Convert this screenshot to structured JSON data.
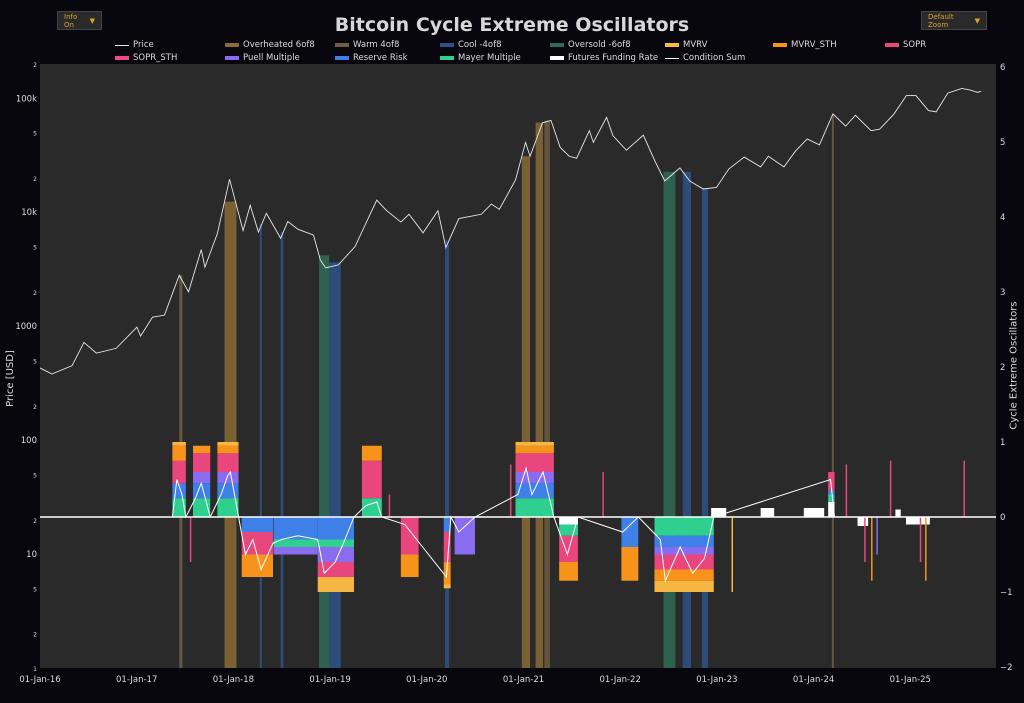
{
  "header": {
    "title": "Bitcoin Cycle Extreme Oscillators",
    "info_button": "Info On",
    "zoom_button": "Default Zoom",
    "dropdown_icon": "triangle-down-icon"
  },
  "colors": {
    "background": "#07070d",
    "plot_bg": "#2a2a2a",
    "price": "#e8e8e8",
    "overheated": "#8a6a36",
    "warm": "#6e5e42",
    "cool": "#2f5288",
    "oversold": "#2f6b55",
    "mvrv": "#f5b642",
    "mvrv_sth": "#f7931a",
    "sopr": "#e8467c",
    "sopr_sth": "#f04a86",
    "puell": "#8a6cf0",
    "reserve": "#3f80e8",
    "mayer": "#2fcf90",
    "futures": "#ffffff",
    "condition_sum": "#ffffff"
  },
  "legend": [
    {
      "key": "price",
      "label": "Price",
      "style": "line"
    },
    {
      "key": "overheated",
      "label": "Overheated 6of8",
      "style": "bar"
    },
    {
      "key": "warm",
      "label": "Warm 4of8",
      "style": "bar"
    },
    {
      "key": "cool",
      "label": "Cool -4of8",
      "style": "bar"
    },
    {
      "key": "oversold",
      "label": "Oversold -6of8",
      "style": "bar"
    },
    {
      "key": "mvrv",
      "label": "MVRV",
      "style": "bar"
    },
    {
      "key": "mvrv_sth",
      "label": "MVRV_STH",
      "style": "bar"
    },
    {
      "key": "sopr",
      "label": "SOPR",
      "style": "bar"
    },
    {
      "key": "sopr_sth",
      "label": "SOPR_STH",
      "style": "bar"
    },
    {
      "key": "puell",
      "label": "Puell Multiple",
      "style": "bar"
    },
    {
      "key": "reserve",
      "label": "Reserve Risk",
      "style": "bar"
    },
    {
      "key": "mayer",
      "label": "Mayer Multiple",
      "style": "bar"
    },
    {
      "key": "futures",
      "label": "Futures Funding Rate",
      "style": "bar"
    },
    {
      "key": "condition_sum",
      "label": "Condition Sum",
      "style": "line"
    }
  ],
  "chart_data": {
    "type": "line",
    "title": "Bitcoin Cycle Extreme Oscillators",
    "ylabel": "Price [USD]",
    "y2label": "Cycle Extreme Oscillators",
    "yscale": "log",
    "ylim": [
      1,
      200000
    ],
    "y2lim": [
      -2,
      6
    ],
    "xlim": [
      "2016-01-01",
      "2025-09-30"
    ],
    "grid": false,
    "legend_placement": "top",
    "x_ticks": [
      "01-Jan-16",
      "01-Jan-17",
      "01-Jan-18",
      "01-Jan-19",
      "01-Jan-20",
      "01-Jan-21",
      "01-Jan-22",
      "01-Jan-23",
      "01-Jan-24",
      "01-Jan-25"
    ],
    "y_ticks": [
      {
        "v": 1,
        "l": "1"
      },
      {
        "v": 2,
        "l": "2"
      },
      {
        "v": 5,
        "l": "5"
      },
      {
        "v": 10,
        "l": "10"
      },
      {
        "v": 20,
        "l": "2"
      },
      {
        "v": 50,
        "l": "5"
      },
      {
        "v": 100,
        "l": "100"
      },
      {
        "v": 200,
        "l": "2"
      },
      {
        "v": 500,
        "l": "5"
      },
      {
        "v": 1000,
        "l": "1000"
      },
      {
        "v": 2000,
        "l": "2"
      },
      {
        "v": 5000,
        "l": "5"
      },
      {
        "v": 10000,
        "l": "10k"
      },
      {
        "v": 20000,
        "l": "2"
      },
      {
        "v": 50000,
        "l": "5"
      },
      {
        "v": 100000,
        "l": "100k"
      },
      {
        "v": 200000,
        "l": "2"
      }
    ],
    "y2_ticks": [
      -2,
      -1,
      0,
      1,
      2,
      3,
      4,
      5,
      6
    ],
    "price": [
      [
        "2016-01-01",
        430
      ],
      [
        "2016-02-15",
        380
      ],
      [
        "2016-05-01",
        450
      ],
      [
        "2016-06-15",
        720
      ],
      [
        "2016-08-01",
        580
      ],
      [
        "2016-10-15",
        640
      ],
      [
        "2017-01-01",
        980
      ],
      [
        "2017-01-15",
        820
      ],
      [
        "2017-03-01",
        1200
      ],
      [
        "2017-04-15",
        1250
      ],
      [
        "2017-06-10",
        2800
      ],
      [
        "2017-07-15",
        2000
      ],
      [
        "2017-09-01",
        4700
      ],
      [
        "2017-09-15",
        3300
      ],
      [
        "2017-11-01",
        6500
      ],
      [
        "2017-12-17",
        19500
      ],
      [
        "2018-02-06",
        6900
      ],
      [
        "2018-03-05",
        11500
      ],
      [
        "2018-04-05",
        6700
      ],
      [
        "2018-05-05",
        9800
      ],
      [
        "2018-06-28",
        5900
      ],
      [
        "2018-07-25",
        8300
      ],
      [
        "2018-09-01",
        7100
      ],
      [
        "2018-10-30",
        6300
      ],
      [
        "2018-11-25",
        3800
      ],
      [
        "2018-12-15",
        3250
      ],
      [
        "2019-02-01",
        3450
      ],
      [
        "2019-04-05",
        5000
      ],
      [
        "2019-06-26",
        12800
      ],
      [
        "2019-08-01",
        10400
      ],
      [
        "2019-09-25",
        8200
      ],
      [
        "2019-10-26",
        9600
      ],
      [
        "2019-12-18",
        6600
      ],
      [
        "2020-02-12",
        10300
      ],
      [
        "2020-03-13",
        4900
      ],
      [
        "2020-05-01",
        8800
      ],
      [
        "2020-07-25",
        9600
      ],
      [
        "2020-09-01",
        11800
      ],
      [
        "2020-10-01",
        10600
      ],
      [
        "2020-12-01",
        19200
      ],
      [
        "2021-01-08",
        41000
      ],
      [
        "2021-01-25",
        31000
      ],
      [
        "2021-03-13",
        61000
      ],
      [
        "2021-04-14",
        64000
      ],
      [
        "2021-05-19",
        37000
      ],
      [
        "2021-06-22",
        31000
      ],
      [
        "2021-07-20",
        29800
      ],
      [
        "2021-09-06",
        52000
      ],
      [
        "2021-09-21",
        41000
      ],
      [
        "2021-11-10",
        68000
      ],
      [
        "2021-12-04",
        47000
      ],
      [
        "2022-01-24",
        35000
      ],
      [
        "2022-03-29",
        47500
      ],
      [
        "2022-05-12",
        28000
      ],
      [
        "2022-06-18",
        18800
      ],
      [
        "2022-08-14",
        24500
      ],
      [
        "2022-09-20",
        18800
      ],
      [
        "2022-11-10",
        16000
      ],
      [
        "2022-12-30",
        16500
      ],
      [
        "2023-02-15",
        24000
      ],
      [
        "2023-04-14",
        30500
      ],
      [
        "2023-06-15",
        25000
      ],
      [
        "2023-07-14",
        31000
      ],
      [
        "2023-09-11",
        25000
      ],
      [
        "2023-10-25",
        34500
      ],
      [
        "2023-12-08",
        44000
      ],
      [
        "2024-01-23",
        39000
      ],
      [
        "2024-03-14",
        73000
      ],
      [
        "2024-05-01",
        57000
      ],
      [
        "2024-06-07",
        71000
      ],
      [
        "2024-08-05",
        52000
      ],
      [
        "2024-09-06",
        53500
      ],
      [
        "2024-10-29",
        72000
      ],
      [
        "2024-12-17",
        106000
      ],
      [
        "2025-01-21",
        106000
      ],
      [
        "2025-03-10",
        78000
      ],
      [
        "2025-04-08",
        76000
      ],
      [
        "2025-05-22",
        111000
      ],
      [
        "2025-07-14",
        122000
      ],
      [
        "2025-08-15",
        118000
      ],
      [
        "2025-09-10",
        113000
      ],
      [
        "2025-09-25",
        115000
      ]
    ],
    "regime_bands": [
      {
        "type": "warm",
        "start": "2017-06-10",
        "end": "2017-06-22"
      },
      {
        "type": "overheated",
        "start": "2017-11-28",
        "end": "2018-01-12"
      },
      {
        "type": "cool",
        "start": "2018-04-10",
        "end": "2018-04-18"
      },
      {
        "type": "cool",
        "start": "2018-06-28",
        "end": "2018-07-08"
      },
      {
        "type": "oversold",
        "start": "2018-11-20",
        "end": "2018-12-28"
      },
      {
        "type": "cool",
        "start": "2018-12-28",
        "end": "2019-02-10"
      },
      {
        "type": "cool",
        "start": "2020-03-10",
        "end": "2020-03-25"
      },
      {
        "type": "overheated",
        "start": "2020-12-25",
        "end": "2021-01-25"
      },
      {
        "type": "overheated",
        "start": "2021-02-15",
        "end": "2021-03-15"
      },
      {
        "type": "warm",
        "start": "2021-03-20",
        "end": "2021-04-10"
      },
      {
        "type": "oversold",
        "start": "2022-06-13",
        "end": "2022-07-28"
      },
      {
        "type": "cool",
        "start": "2022-08-25",
        "end": "2022-09-25"
      },
      {
        "type": "cool",
        "start": "2022-11-05",
        "end": "2022-11-28"
      },
      {
        "type": "warm",
        "start": "2024-03-10",
        "end": "2024-03-17"
      }
    ],
    "oscillator_episodes": [
      {
        "start": "2017-05-15",
        "end": "2017-07-05",
        "layers": [
          [
            "mayer",
            0.25
          ],
          [
            "reserve",
            0.45
          ],
          [
            "sopr",
            0.75
          ],
          [
            "mvrv_sth",
            0.95
          ],
          [
            "mvrv",
            1.0
          ]
        ]
      },
      {
        "start": "2017-08-01",
        "end": "2017-10-05",
        "layers": [
          [
            "mayer",
            0.25
          ],
          [
            "reserve",
            0.45
          ],
          [
            "puell",
            0.6
          ],
          [
            "sopr",
            0.85
          ],
          [
            "mvrv_sth",
            0.95
          ]
        ]
      },
      {
        "start": "2017-11-01",
        "end": "2018-01-20",
        "layers": [
          [
            "mayer",
            0.25
          ],
          [
            "reserve",
            0.45
          ],
          [
            "puell",
            0.6
          ],
          [
            "sopr",
            0.85
          ],
          [
            "mvrv_sth",
            0.95
          ],
          [
            "mvrv",
            1.0
          ]
        ]
      },
      {
        "start": "2019-05-01",
        "end": "2019-07-15",
        "layers": [
          [
            "mayer",
            0.25
          ],
          [
            "sopr",
            0.75
          ],
          [
            "mvrv_sth",
            0.95
          ]
        ]
      },
      {
        "start": "2020-12-01",
        "end": "2021-04-25",
        "layers": [
          [
            "mayer",
            0.25
          ],
          [
            "reserve",
            0.45
          ],
          [
            "puell",
            0.6
          ],
          [
            "sopr",
            0.85
          ],
          [
            "mvrv_sth",
            0.95
          ],
          [
            "mvrv",
            1.0
          ]
        ]
      },
      {
        "start": "2024-02-25",
        "end": "2024-03-20",
        "layers": [
          [
            "futures",
            0.2
          ],
          [
            "mayer",
            0.3
          ],
          [
            "reserve",
            0.35
          ],
          [
            "sopr",
            0.6
          ]
        ]
      },
      {
        "start": "2022-12-10",
        "end": "2023-02-05",
        "layers": [
          [
            "futures",
            0.12
          ]
        ]
      },
      {
        "start": "2023-06-15",
        "end": "2023-08-05",
        "layers": [
          [
            "futures",
            0.12
          ]
        ]
      },
      {
        "start": "2023-11-25",
        "end": "2024-02-10",
        "layers": [
          [
            "futures",
            0.12
          ]
        ]
      },
      {
        "start": "2024-11-05",
        "end": "2024-11-25",
        "layers": [
          [
            "futures",
            0.1
          ]
        ]
      },
      {
        "start": "2018-02-01",
        "end": "2018-05-30",
        "layers": [
          [
            "reserve",
            -0.2
          ],
          [
            "sopr",
            -0.5
          ],
          [
            "mvrv_sth",
            -0.8
          ]
        ]
      },
      {
        "start": "2018-06-01",
        "end": "2018-11-15",
        "layers": [
          [
            "reserve",
            -0.3
          ],
          [
            "mayer",
            -0.4
          ],
          [
            "puell",
            -0.5
          ]
        ]
      },
      {
        "start": "2018-11-15",
        "end": "2019-04-01",
        "layers": [
          [
            "reserve",
            -0.3
          ],
          [
            "mayer",
            -0.4
          ],
          [
            "puell",
            -0.6
          ],
          [
            "sopr",
            -0.8
          ],
          [
            "mvrv",
            -1.0
          ]
        ]
      },
      {
        "start": "2019-09-25",
        "end": "2019-12-01",
        "layers": [
          [
            "sopr",
            -0.5
          ],
          [
            "mvrv_sth",
            -0.8
          ]
        ]
      },
      {
        "start": "2020-03-05",
        "end": "2020-03-31",
        "layers": [
          [
            "reserve",
            -0.2
          ],
          [
            "sopr",
            -0.6
          ],
          [
            "mvrv_sth",
            -0.9
          ],
          [
            "mvrv",
            -0.95
          ]
        ]
      },
      {
        "start": "2020-04-15",
        "end": "2020-07-01",
        "layers": [
          [
            "puell",
            -0.5
          ]
        ]
      },
      {
        "start": "2021-05-15",
        "end": "2021-07-25",
        "layers": [
          [
            "futures",
            -0.1
          ],
          [
            "mayer",
            -0.25
          ],
          [
            "sopr",
            -0.6
          ],
          [
            "mvrv_sth",
            -0.85
          ]
        ]
      },
      {
        "start": "2022-01-05",
        "end": "2022-03-10",
        "layers": [
          [
            "reserve",
            -0.4
          ],
          [
            "mvrv_sth",
            -0.85
          ]
        ]
      },
      {
        "start": "2022-05-10",
        "end": "2022-12-20",
        "layers": [
          [
            "mayer",
            -0.25
          ],
          [
            "reserve",
            -0.4
          ],
          [
            "puell",
            -0.5
          ],
          [
            "sopr",
            -0.7
          ],
          [
            "mvrv_sth",
            -0.85
          ],
          [
            "mvrv",
            -1.0
          ]
        ]
      },
      {
        "start": "2024-06-15",
        "end": "2024-07-25",
        "layers": [
          [
            "futures",
            -0.12
          ]
        ]
      },
      {
        "start": "2024-12-15",
        "end": "2025-03-15",
        "layers": [
          [
            "futures",
            -0.1
          ]
        ]
      }
    ],
    "oscillator_spikes": [
      [
        "2017-07-20",
        -0.6,
        "sopr"
      ],
      [
        "2019-08-10",
        0.3,
        "sopr"
      ],
      [
        "2020-11-10",
        0.7,
        "sopr"
      ],
      [
        "2021-10-25",
        0.6,
        "sopr"
      ],
      [
        "2023-02-25",
        -1.0,
        "mvrv"
      ],
      [
        "2024-05-01",
        0.7,
        "sopr"
      ],
      [
        "2024-07-10",
        -0.6,
        "sopr"
      ],
      [
        "2024-08-05",
        -0.85,
        "mvrv_sth"
      ],
      [
        "2024-08-25",
        -0.5,
        "puell"
      ],
      [
        "2024-10-15",
        0.75,
        "sopr"
      ],
      [
        "2025-02-05",
        -0.6,
        "sopr"
      ],
      [
        "2025-02-25",
        -0.85,
        "mvrv_sth"
      ],
      [
        "2025-07-20",
        0.75,
        "sopr"
      ]
    ],
    "condition_sum": [
      [
        "2017-05-15",
        0
      ],
      [
        "2017-06-01",
        0.5
      ],
      [
        "2017-06-20",
        0.3
      ],
      [
        "2017-07-05",
        0
      ],
      [
        "2017-08-10",
        0.25
      ],
      [
        "2017-09-01",
        0.45
      ],
      [
        "2017-09-20",
        0.2
      ],
      [
        "2017-10-05",
        0
      ],
      [
        "2017-11-15",
        0.3
      ],
      [
        "2017-12-10",
        0.55
      ],
      [
        "2017-12-20",
        0.6
      ],
      [
        "2018-01-20",
        0
      ],
      [
        "2018-02-15",
        -0.5
      ],
      [
        "2018-03-15",
        -0.3
      ],
      [
        "2018-04-15",
        -0.7
      ],
      [
        "2018-05-30",
        -0.35
      ],
      [
        "2018-07-01",
        -0.3
      ],
      [
        "2018-09-01",
        -0.25
      ],
      [
        "2018-11-15",
        -0.3
      ],
      [
        "2018-12-10",
        -0.75
      ],
      [
        "2019-01-20",
        -0.6
      ],
      [
        "2019-02-20",
        -0.35
      ],
      [
        "2019-04-01",
        0
      ],
      [
        "2019-05-15",
        0.15
      ],
      [
        "2019-06-26",
        0.2
      ],
      [
        "2019-07-15",
        0
      ],
      [
        "2019-10-10",
        -0.1
      ],
      [
        "2020-03-15",
        -0.8
      ],
      [
        "2020-04-01",
        0
      ],
      [
        "2020-05-01",
        -0.2
      ],
      [
        "2020-07-01",
        0
      ],
      [
        "2020-12-10",
        0.3
      ],
      [
        "2021-01-10",
        0.65
      ],
      [
        "2021-02-01",
        0.3
      ],
      [
        "2021-03-15",
        0.6
      ],
      [
        "2021-04-25",
        0
      ],
      [
        "2021-06-15",
        -0.5
      ],
      [
        "2021-07-25",
        0
      ],
      [
        "2022-01-10",
        -0.2
      ],
      [
        "2022-03-10",
        0
      ],
      [
        "2022-06-01",
        -0.3
      ],
      [
        "2022-06-20",
        -0.85
      ],
      [
        "2022-08-15",
        -0.4
      ],
      [
        "2022-10-01",
        -0.75
      ],
      [
        "2022-11-15",
        -0.55
      ],
      [
        "2022-12-20",
        0
      ],
      [
        "2024-03-05",
        0.5
      ],
      [
        "2024-03-20",
        0
      ],
      [
        "2025-09-30",
        0
      ]
    ]
  }
}
